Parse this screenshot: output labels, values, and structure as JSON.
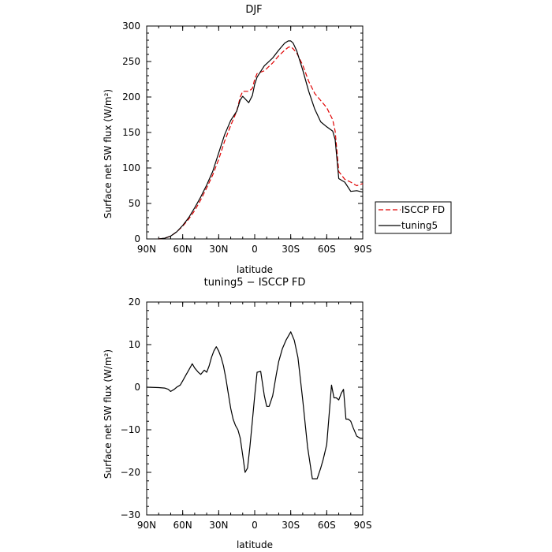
{
  "chart_data": [
    {
      "type": "line",
      "title": "DJF",
      "xlabel": "latitude",
      "ylabel": "Surface net SW flux (W/m²)",
      "xlim": [
        90,
        -90
      ],
      "ylim": [
        0,
        300
      ],
      "grid": false,
      "legend_position": "outside-right",
      "x_ticks": [
        90,
        60,
        30,
        0,
        -30,
        -60,
        -90
      ],
      "x_tick_labels": [
        "90N",
        "60N",
        "30N",
        "0",
        "30S",
        "60S",
        "90S"
      ],
      "y_ticks": [
        0,
        50,
        100,
        150,
        200,
        250,
        300
      ],
      "y_tick_labels": [
        "0",
        "50",
        "100",
        "150",
        "200",
        "250",
        "300"
      ],
      "series": [
        {
          "name": "ISCCP FD",
          "color": "#e00000",
          "dash": "dashed",
          "x": [
            80,
            75,
            70,
            65,
            60,
            55,
            50,
            45,
            40,
            35,
            30,
            25,
            20,
            15,
            12,
            10,
            5,
            2,
            0,
            -2,
            -5,
            -8,
            -10,
            -15,
            -20,
            -25,
            -28,
            -30,
            -32,
            -35,
            -40,
            -45,
            -50,
            -55,
            -60,
            -65,
            -67,
            -70,
            -75,
            -80,
            -85,
            -90
          ],
          "y": [
            0,
            1,
            4,
            10,
            18,
            28,
            40,
            55,
            72,
            90,
            112,
            138,
            160,
            180,
            200,
            208,
            208,
            212,
            225,
            233,
            235,
            237,
            240,
            248,
            258,
            266,
            270,
            271,
            268,
            262,
            245,
            222,
            205,
            195,
            185,
            168,
            152,
            95,
            84,
            80,
            75,
            78
          ]
        },
        {
          "name": "tuning5",
          "color": "#000000",
          "dash": "solid",
          "x": [
            80,
            75,
            70,
            65,
            60,
            55,
            50,
            45,
            40,
            35,
            30,
            25,
            20,
            15,
            12,
            10,
            5,
            2,
            0,
            -2,
            -5,
            -8,
            -10,
            -15,
            -20,
            -25,
            -28,
            -30,
            -32,
            -35,
            -40,
            -45,
            -50,
            -55,
            -60,
            -65,
            -67,
            -70,
            -75,
            -80,
            -85,
            -90
          ],
          "y": [
            0,
            1,
            4,
            10,
            19,
            30,
            44,
            59,
            76,
            95,
            121,
            147,
            167,
            180,
            196,
            201,
            192,
            202,
            218,
            228,
            236,
            244,
            247,
            255,
            266,
            276,
            279,
            279,
            276,
            265,
            238,
            208,
            183,
            165,
            158,
            152,
            140,
            85,
            80,
            67,
            68,
            66
          ]
        }
      ]
    },
    {
      "type": "line",
      "title": "tuning5 − ISCCP FD",
      "xlabel": "latitude",
      "ylabel": "Surface net SW flux (W/m²)",
      "xlim": [
        90,
        -90
      ],
      "ylim": [
        -30,
        20
      ],
      "grid": false,
      "x_ticks": [
        90,
        60,
        30,
        0,
        -30,
        -60,
        -90
      ],
      "x_tick_labels": [
        "90N",
        "60N",
        "30N",
        "0",
        "30S",
        "60S",
        "90S"
      ],
      "y_ticks": [
        -30,
        -20,
        -10,
        0,
        10,
        20
      ],
      "y_tick_labels": [
        "−30",
        "−20",
        "−10",
        "0",
        "10",
        "20"
      ],
      "series": [
        {
          "color": "#000000",
          "dash": "solid",
          "x": [
            90,
            80,
            75,
            72,
            70,
            67,
            65,
            62,
            60,
            57,
            55,
            52,
            50,
            47,
            45,
            42,
            40,
            38,
            36,
            34,
            32,
            30,
            28,
            26,
            24,
            22,
            20,
            18,
            16,
            14,
            12,
            10,
            8,
            6,
            4,
            2,
            0,
            -2,
            -5,
            -8,
            -10,
            -12,
            -15,
            -18,
            -20,
            -23,
            -26,
            -30,
            -33,
            -36,
            -40,
            -44,
            -48,
            -52,
            -55,
            -57,
            -60,
            -64,
            -66,
            -68,
            -70,
            -72,
            -74,
            -76,
            -78,
            -80,
            -82,
            -85,
            -88,
            -90
          ],
          "y": [
            0,
            -0.1,
            -0.2,
            -0.5,
            -1,
            -0.5,
            0,
            0.5,
            1.5,
            3,
            4,
            5.5,
            4.5,
            3.5,
            3,
            4,
            3.5,
            5,
            7,
            8.5,
            9.5,
            8.5,
            7,
            5,
            2,
            -1.5,
            -5,
            -7.5,
            -9,
            -10,
            -12,
            -16,
            -20,
            -19,
            -14,
            -8,
            -2,
            3.5,
            3.7,
            -2,
            -4.5,
            -4.5,
            -2,
            3,
            6,
            9,
            11,
            13,
            11,
            7,
            -3,
            -14,
            -21.5,
            -21.5,
            -19,
            -17,
            -13.5,
            0.5,
            -2.5,
            -2.5,
            -3,
            -1.5,
            -0.5,
            -7.5,
            -7.5,
            -8,
            -9.5,
            -11.5,
            -12,
            -12
          ]
        }
      ]
    }
  ]
}
